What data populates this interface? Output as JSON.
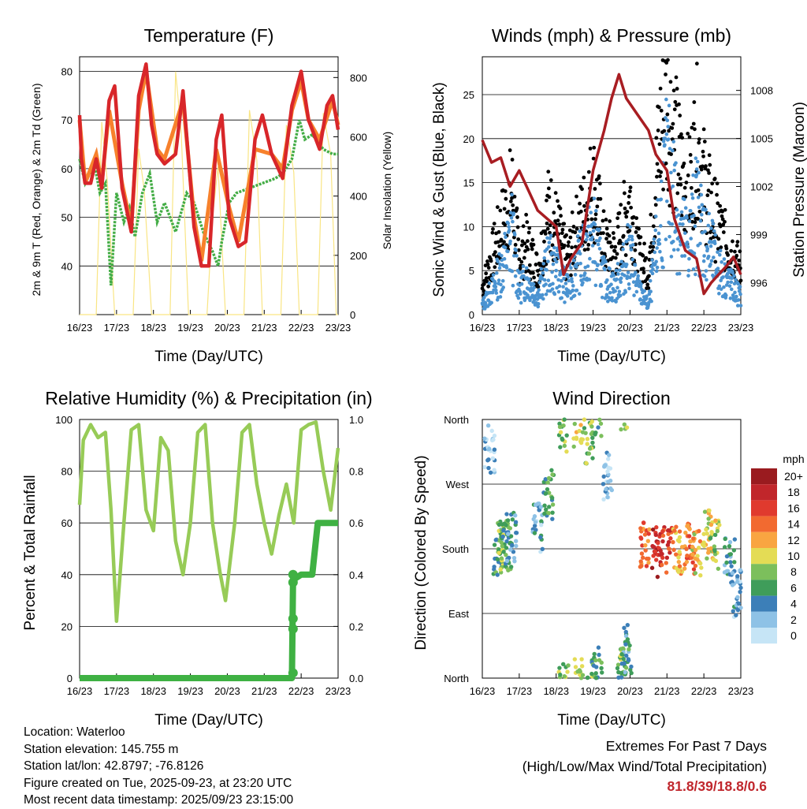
{
  "colors": {
    "temp": "#d8262a",
    "temp9m": "#f7812c",
    "dew": "#44ad46",
    "solar": "#f9e584",
    "wind": "#4a93d1",
    "gust": "#000000",
    "pressure": "#a81d22",
    "rh": "#97cb57",
    "precip": "#3fb143",
    "extremes": "#c0272d"
  },
  "chart_data": [
    {
      "type": "line",
      "title": "Temperature (F)",
      "xlabel": "Time (Day/UTC)",
      "ylabel": "2m & 9m T (Red, Orange) & 2m Td (Green)",
      "ylabel_right": "Solar Insolation (Yellow)",
      "x_ticks": [
        "16/23",
        "17/23",
        "18/23",
        "19/23",
        "20/23",
        "21/23",
        "22/23",
        "23/23"
      ],
      "xlim": [
        0,
        7
      ],
      "y_ticks": [
        40,
        50,
        60,
        70,
        80
      ],
      "ylim": [
        30,
        83
      ],
      "y2_ticks": [
        0,
        200,
        400,
        600,
        800
      ],
      "y2lim": [
        0,
        870
      ],
      "series": [
        {
          "name": "2m T",
          "color": "#d8262a",
          "x": [
            0,
            0.05,
            0.15,
            0.3,
            0.45,
            0.6,
            0.8,
            0.95,
            1.15,
            1.4,
            1.6,
            1.8,
            1.95,
            2.1,
            2.3,
            2.6,
            2.8,
            3.1,
            3.3,
            3.5,
            3.7,
            3.85,
            4.05,
            4.3,
            4.5,
            4.75,
            4.95,
            5.2,
            5.5,
            5.75,
            6.0,
            6.2,
            6.5,
            6.7,
            6.85,
            7.0
          ],
          "values": [
            71,
            62,
            57,
            57,
            62,
            56,
            74,
            77,
            56,
            47,
            75,
            81.5,
            69,
            63,
            61,
            63,
            76,
            48,
            40,
            40,
            66,
            71,
            50,
            44,
            45,
            66,
            71,
            63,
            58,
            73,
            80,
            70,
            64,
            73,
            75,
            68
          ]
        },
        {
          "name": "9m T",
          "color": "#f7812c",
          "x": [
            0,
            0.15,
            0.45,
            0.6,
            0.8,
            1.15,
            1.4,
            1.6,
            1.8,
            2.1,
            2.3,
            2.8,
            3.1,
            3.3,
            3.7,
            4.05,
            4.3,
            4.75,
            5.2,
            5.5,
            5.75,
            6.0,
            6.2,
            6.5,
            6.85,
            7.0
          ],
          "values": [
            70,
            57,
            63,
            57,
            72,
            57,
            48,
            72,
            80,
            64,
            62,
            74,
            50,
            41,
            64,
            52,
            45,
            64,
            63,
            60,
            72,
            78,
            70,
            66,
            74,
            69
          ]
        },
        {
          "name": "2m Td",
          "color": "#44ad46",
          "x": [
            0,
            0.15,
            0.4,
            0.55,
            0.7,
            0.85,
            1.0,
            1.2,
            1.35,
            1.5,
            1.7,
            1.9,
            2.1,
            2.3,
            2.6,
            2.9,
            3.1,
            3.35,
            3.6,
            3.75,
            3.85,
            4.05,
            4.25,
            4.6,
            4.95,
            5.3,
            5.5,
            5.75,
            5.95,
            6.1,
            6.3,
            6.6,
            6.85,
            7.0
          ],
          "values": [
            62,
            57,
            61,
            55,
            57,
            36,
            55,
            49,
            52,
            46,
            55,
            59,
            49,
            53,
            47,
            55,
            53,
            47,
            43,
            40,
            45,
            53,
            55,
            56,
            57,
            58,
            59,
            62,
            70,
            66,
            67,
            64,
            63,
            63
          ]
        }
      ],
      "solar": {
        "name": "Solar Insolation",
        "color": "#f9e584",
        "x": [
          0,
          0.45,
          0.6,
          0.75,
          0.95,
          1.45,
          1.6,
          1.75,
          1.95,
          2.45,
          2.6,
          2.75,
          2.95,
          3.45,
          3.6,
          3.75,
          3.95,
          4.45,
          4.6,
          4.8,
          4.95,
          5.45,
          5.6,
          5.8,
          5.95,
          6.45,
          6.6,
          6.8,
          6.95,
          7.0
        ],
        "values": [
          0,
          0,
          650,
          450,
          0,
          0,
          560,
          420,
          0,
          0,
          820,
          620,
          0,
          0,
          330,
          500,
          0,
          0,
          690,
          520,
          0,
          0,
          640,
          480,
          0,
          0,
          680,
          540,
          0,
          0
        ]
      }
    },
    {
      "type": "scatter",
      "title": "Winds (mph) & Pressure (mb)",
      "xlabel": "Time (Day/UTC)",
      "ylabel": "Sonic Wind & Gust (Blue, Black)",
      "ylabel_right": "Station Pressure (Maroon)",
      "x_ticks": [
        "16/23",
        "17/23",
        "18/23",
        "19/23",
        "20/23",
        "21/23",
        "22/23",
        "23/23"
      ],
      "xlim": [
        0,
        7
      ],
      "y_ticks": [
        0,
        5,
        10,
        15,
        20,
        25
      ],
      "ylim": [
        0,
        29.3
      ],
      "y2_ticks": [
        996,
        999,
        1002,
        1005,
        1008
      ],
      "y2lim": [
        994,
        1010.1
      ],
      "series": [
        {
          "name": "Gust",
          "color": "#000000",
          "x": [
            0,
            0.3,
            0.6,
            0.8,
            1.0,
            1.2,
            1.5,
            1.8,
            2.0,
            2.3,
            2.5,
            2.8,
            3.0,
            3.3,
            3.6,
            4.0,
            4.2,
            4.5,
            4.8,
            5.0,
            5.2,
            5.4,
            5.6,
            5.8,
            6.0,
            6.2,
            6.4,
            6.6,
            6.8,
            7.0
          ],
          "values": [
            3,
            7,
            11,
            14,
            6,
            8,
            5,
            12,
            10,
            6,
            9,
            12,
            15,
            8,
            7,
            13,
            7,
            5,
            20,
            24,
            20,
            16,
            14,
            20,
            15,
            12,
            10,
            8,
            7,
            5
          ]
        },
        {
          "name": "Sonic Wind",
          "color": "#4a93d1",
          "x": [
            0,
            0.3,
            0.6,
            0.8,
            1.0,
            1.2,
            1.5,
            1.8,
            2.0,
            2.3,
            2.5,
            2.8,
            3.0,
            3.3,
            3.6,
            4.0,
            4.2,
            4.5,
            4.8,
            5.0,
            5.2,
            5.4,
            5.6,
            5.8,
            6.0,
            6.2,
            6.4,
            6.6,
            6.8,
            7.0
          ],
          "values": [
            1,
            3,
            6,
            9,
            3,
            4,
            2,
            6,
            5,
            3,
            5,
            7,
            9,
            4,
            3,
            7,
            3,
            1,
            10,
            16,
            13,
            9,
            8,
            12,
            9,
            7,
            5,
            4,
            3,
            2
          ]
        },
        {
          "name": "Station Pressure",
          "color": "#a81d22",
          "x": [
            0,
            0.25,
            0.5,
            0.75,
            1.0,
            1.5,
            2.0,
            2.2,
            2.4,
            2.7,
            3.0,
            3.3,
            3.5,
            3.7,
            3.9,
            4.2,
            4.5,
            4.7,
            5.0,
            5.2,
            5.5,
            5.8,
            6.0,
            6.2,
            6.4,
            6.6,
            6.8,
            7.0
          ],
          "values": [
            1004.9,
            1003.5,
            1003.8,
            1002,
            1003,
            1000.5,
            999.5,
            996.5,
            997.5,
            998.5,
            1003,
            1005.5,
            1007.5,
            1009,
            1007.5,
            1006.5,
            1005.5,
            1004,
            1003,
            1000,
            998,
            997.5,
            995.3,
            996,
            996.5,
            997,
            997.6,
            996.5
          ]
        }
      ]
    },
    {
      "type": "line",
      "title": "Relative Humidity (%) & Precipitation (in)",
      "xlabel": "Time (Day/UTC)",
      "ylabel": "Percent & Total Rainfall",
      "x_ticks": [
        "16/23",
        "17/23",
        "18/23",
        "19/23",
        "20/23",
        "21/23",
        "22/23",
        "23/23"
      ],
      "xlim": [
        0,
        7
      ],
      "y_ticks": [
        0,
        20,
        40,
        60,
        80,
        100
      ],
      "ylim": [
        0,
        100
      ],
      "y2_ticks": [
        "0.0",
        "0.2",
        "0.4",
        "0.6",
        "0.8",
        "1.0"
      ],
      "y2lim": [
        0,
        1
      ],
      "series": [
        {
          "name": "Relative Humidity",
          "color": "#97cb57",
          "x": [
            0,
            0.1,
            0.3,
            0.5,
            0.7,
            0.85,
            1.0,
            1.2,
            1.4,
            1.6,
            1.8,
            2.0,
            2.2,
            2.4,
            2.6,
            2.8,
            3.0,
            3.2,
            3.4,
            3.6,
            3.8,
            3.95,
            4.2,
            4.4,
            4.6,
            4.8,
            5.0,
            5.2,
            5.4,
            5.6,
            5.8,
            6.0,
            6.2,
            6.4,
            6.6,
            6.8,
            7.0
          ],
          "values": [
            67,
            92,
            98,
            93,
            95,
            65,
            22,
            60,
            96,
            98,
            65,
            57,
            93,
            88,
            53,
            40,
            60,
            95,
            98,
            60,
            41,
            30,
            60,
            95,
            98,
            75,
            60,
            48,
            63,
            75,
            60,
            96,
            98,
            99,
            80,
            65,
            89
          ]
        },
        {
          "name": "Total Rainfall",
          "color": "#3fb143",
          "x": [
            0,
            5.75,
            5.78,
            6.0,
            6.1,
            6.3,
            6.45,
            7.0
          ],
          "values": [
            0,
            0,
            0.38,
            0.4,
            0.4,
            0.4,
            0.6,
            0.6
          ]
        }
      ]
    },
    {
      "type": "scatter",
      "title": "Wind Direction",
      "xlabel": "Time (Day/UTC)",
      "ylabel": "Direction (Colored By Speed)",
      "x_ticks": [
        "16/23",
        "17/23",
        "18/23",
        "19/23",
        "20/23",
        "21/23",
        "22/23",
        "23/23"
      ],
      "xlim": [
        0,
        7
      ],
      "y_ticks": [
        "North",
        "East",
        "South",
        "West",
        "North"
      ],
      "ylim": [
        0,
        360
      ],
      "series": [
        {
          "name": "Direction",
          "x": [
            0.2,
            0.4,
            0.55,
            0.65,
            0.8,
            1.5,
            1.8,
            2.2,
            2.6,
            2.9,
            3.1,
            3.4,
            3.8,
            3.9,
            4.4,
            4.7,
            5.0,
            5.3,
            5.6,
            5.8,
            6.1,
            6.3,
            6.7,
            6.9
          ],
          "values": [
            320,
            175,
            185,
            185,
            195,
            210,
            255,
            350,
            355,
            330,
            8,
            280,
            20,
            40,
            185,
            175,
            180,
            180,
            185,
            175,
            200,
            185,
            160,
            120
          ],
          "speeds": [
            2,
            5,
            8,
            6,
            4,
            3,
            6,
            8,
            10,
            8,
            6,
            2,
            7,
            5,
            14,
            18,
            16,
            12,
            14,
            11,
            10,
            9,
            4,
            3
          ]
        }
      ],
      "legend_title": "mph",
      "legend_labels": [
        "20+",
        "18",
        "16",
        "14",
        "12",
        "10",
        "8",
        "6",
        "4",
        "2",
        "0"
      ],
      "legend_colors": [
        "#9a1b1f",
        "#c1262b",
        "#e03a2e",
        "#f26a30",
        "#f9a541",
        "#e4dc55",
        "#7cbf5c",
        "#3f9d5a",
        "#3c7fb8",
        "#8ec2e6",
        "#c6e5f6"
      ]
    }
  ],
  "footer": {
    "location": "Location: Waterloo",
    "elevation": "Station elevation: 145.755 m",
    "latlon": "Station lat/lon: 42.8797; -76.8126",
    "created": "Figure created on Tue, 2025-09-23, at 23:20 UTC",
    "timestamp": "Most recent data timestamp: 2025/09/23 23:15:00"
  },
  "extremes": {
    "title": "Extremes For Past 7 Days",
    "subtitle": "(High/Low/Max Wind/Total Precipitation)",
    "values": "81.8/39/18.8/0.6"
  }
}
